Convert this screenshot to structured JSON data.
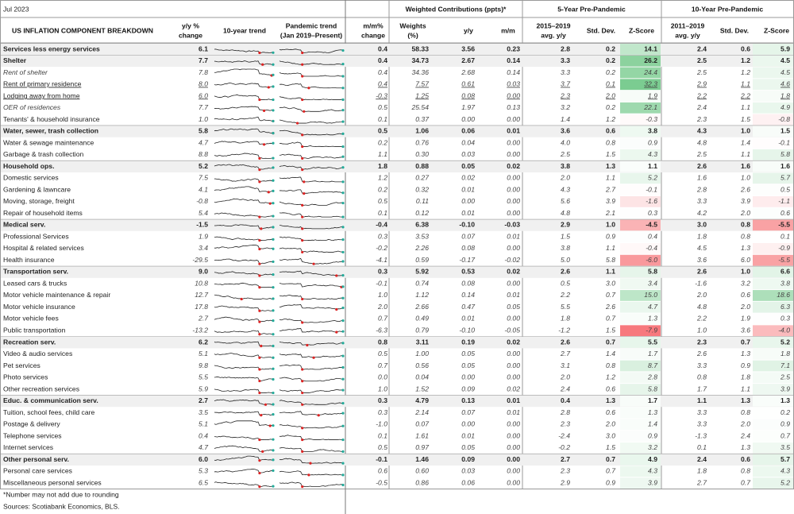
{
  "header": {
    "date": "Jul 2023",
    "title": "US INFLATION COMPONENT BREAKDOWN",
    "groups": [
      "Weighted Contributions (ppts)*",
      "5-Year Pre-Pandemic",
      "10-Year Pre-Pandemic"
    ],
    "columns": [
      [
        "y/y %",
        "change"
      ],
      [
        "10-year trend"
      ],
      [
        "Pandemic trend",
        "(Jan 2019–Present)"
      ],
      [
        "m/m%",
        "change"
      ],
      [
        "Weights",
        "(%)"
      ],
      [
        "y/y"
      ],
      [
        "m/m"
      ],
      [
        "2015–2019",
        "avg. y/y"
      ],
      [
        "Std. Dev."
      ],
      [
        "Z-Score"
      ],
      [
        "2011–2019",
        "avg. y/y"
      ],
      [
        "Std. Dev."
      ],
      [
        "Z-Score"
      ]
    ]
  },
  "table": {
    "rows": [
      {
        "style": "bold",
        "cells": [
          "Services less energy services",
          "6.1",
          "0.4",
          "58.33",
          "3.56",
          "0.23",
          "2.8",
          "0.2",
          "14.1",
          "2.4",
          "0.6",
          "5.9"
        ]
      },
      {
        "style": "bold",
        "cells": [
          "Shelter",
          "7.7",
          "0.4",
          "34.73",
          "2.67",
          "0.14",
          "3.3",
          "0.2",
          "26.2",
          "2.5",
          "1.2",
          "4.5"
        ]
      },
      {
        "style": "italic",
        "cells": [
          "Rent of shelter",
          "7.8",
          "0.4",
          "34.36",
          "2.68",
          "0.14",
          "3.3",
          "0.2",
          "24.4",
          "2.5",
          "1.2",
          "4.5"
        ]
      },
      {
        "style": "underline",
        "cells": [
          "Rent of primary residence",
          "8.0",
          "0.4",
          "7.57",
          "0.61",
          "0.03",
          "3.7",
          "0.1",
          "32.3",
          "2.9",
          "1.1",
          "4.6"
        ]
      },
      {
        "style": "underline",
        "cells": [
          "Lodging away from home",
          "6.0",
          "-0.3",
          "1.25",
          "0.08",
          "0.00",
          "2.3",
          "2.0",
          "1.9",
          "2.2",
          "2.2",
          "1.8"
        ]
      },
      {
        "style": "italic",
        "cells": [
          "OER of residences",
          "7.7",
          "0.5",
          "25.54",
          "1.97",
          "0.13",
          "3.2",
          "0.2",
          "22.1",
          "2.4",
          "1.1",
          "4.9"
        ]
      },
      {
        "style": "plain",
        "cells": [
          "Tenants' & household insurance",
          "1.0",
          "0.1",
          "0.37",
          "0.00",
          "0.00",
          "1.4",
          "1.2",
          "-0.3",
          "2.3",
          "1.5",
          "-0.8"
        ]
      },
      {
        "style": "bold",
        "cells": [
          "Water, sewer, trash collection",
          "5.8",
          "0.5",
          "1.06",
          "0.06",
          "0.01",
          "3.6",
          "0.6",
          "3.8",
          "4.3",
          "1.0",
          "1.5"
        ]
      },
      {
        "style": "plain",
        "cells": [
          "Water & sewage maintenance",
          "4.7",
          "0.2",
          "0.76",
          "0.04",
          "0.00",
          "4.0",
          "0.8",
          "0.9",
          "4.8",
          "1.4",
          "-0.1"
        ]
      },
      {
        "style": "plain",
        "cells": [
          "Garbage & trash collection",
          "8.8",
          "1.1",
          "0.30",
          "0.03",
          "0.00",
          "2.5",
          "1.5",
          "4.3",
          "2.5",
          "1.1",
          "5.8"
        ]
      },
      {
        "style": "bold",
        "cells": [
          "Household ops.",
          "5.2",
          "1.8",
          "0.88",
          "0.05",
          "0.02",
          "3.8",
          "1.3",
          "1.1",
          "2.6",
          "1.6",
          "1.6"
        ]
      },
      {
        "style": "plain",
        "cells": [
          "Domestic services",
          "7.5",
          "1.2",
          "0.27",
          "0.02",
          "0.00",
          "2.0",
          "1.1",
          "5.2",
          "1.6",
          "1.0",
          "5.7"
        ]
      },
      {
        "style": "plain",
        "cells": [
          "Gardening & lawncare",
          "4.1",
          "0.2",
          "0.32",
          "0.01",
          "0.00",
          "4.3",
          "2.7",
          "-0.1",
          "2.8",
          "2.6",
          "0.5"
        ]
      },
      {
        "style": "plain",
        "cells": [
          "Moving, storage, freight",
          "-0.8",
          "0.5",
          "0.11",
          "0.00",
          "0.00",
          "5.6",
          "3.9",
          "-1.6",
          "3.3",
          "3.9",
          "-1.1"
        ]
      },
      {
        "style": "plain",
        "cells": [
          "Repair of household items",
          "5.4",
          "0.1",
          "0.12",
          "0.01",
          "0.00",
          "4.8",
          "2.1",
          "0.3",
          "4.2",
          "2.0",
          "0.6"
        ]
      },
      {
        "style": "bold",
        "cells": [
          "Medical serv.",
          "-1.5",
          "-0.4",
          "6.38",
          "-0.10",
          "-0.03",
          "2.9",
          "1.0",
          "-4.5",
          "3.0",
          "0.8",
          "-5.5"
        ]
      },
      {
        "style": "plain",
        "cells": [
          "Professional Services",
          "1.9",
          "0.3",
          "3.53",
          "0.07",
          "0.01",
          "1.5",
          "0.9",
          "0.4",
          "1.8",
          "0.8",
          "0.1"
        ]
      },
      {
        "style": "plain",
        "cells": [
          "Hospital & related services",
          "3.4",
          "-0.2",
          "2.26",
          "0.08",
          "0.00",
          "3.8",
          "1.1",
          "-0.4",
          "4.5",
          "1.3",
          "-0.9"
        ]
      },
      {
        "style": "plain",
        "cells": [
          "Health insurance",
          "-29.5",
          "-4.1",
          "0.59",
          "-0.17",
          "-0.02",
          "5.0",
          "5.8",
          "-6.0",
          "3.6",
          "6.0",
          "-5.5"
        ]
      },
      {
        "style": "bold",
        "cells": [
          "Transportation serv.",
          "9.0",
          "0.3",
          "5.92",
          "0.53",
          "0.02",
          "2.6",
          "1.1",
          "5.8",
          "2.6",
          "1.0",
          "6.6"
        ]
      },
      {
        "style": "plain",
        "cells": [
          "Leased cars & trucks",
          "10.8",
          "-0.1",
          "0.74",
          "0.08",
          "0.00",
          "0.5",
          "3.0",
          "3.4",
          "-1.6",
          "3.2",
          "3.8"
        ]
      },
      {
        "style": "plain",
        "cells": [
          "Motor vehicle maintenance & repair",
          "12.7",
          "1.0",
          "1.12",
          "0.14",
          "0.01",
          "2.2",
          "0.7",
          "15.0",
          "2.0",
          "0.6",
          "18.6"
        ]
      },
      {
        "style": "plain",
        "cells": [
          "Motor vehicle insurance",
          "17.8",
          "2.0",
          "2.66",
          "0.47",
          "0.05",
          "5.5",
          "2.6",
          "4.7",
          "4.8",
          "2.0",
          "6.3"
        ]
      },
      {
        "style": "plain",
        "cells": [
          "Motor vehicle fees",
          "2.7",
          "0.7",
          "0.49",
          "0.01",
          "0.00",
          "1.8",
          "0.7",
          "1.3",
          "2.2",
          "1.9",
          "0.3"
        ]
      },
      {
        "style": "plain",
        "cells": [
          "Public transportation",
          "-13.2",
          "-6.3",
          "0.79",
          "-0.10",
          "-0.05",
          "-1.2",
          "1.5",
          "-7.9",
          "1.0",
          "3.6",
          "-4.0"
        ]
      },
      {
        "style": "bold",
        "cells": [
          "Recreation serv.",
          "6.2",
          "0.8",
          "3.11",
          "0.19",
          "0.02",
          "2.6",
          "0.7",
          "5.5",
          "2.3",
          "0.7",
          "5.2"
        ]
      },
      {
        "style": "plain",
        "cells": [
          "Video & audio services",
          "5.1",
          "0.5",
          "1.00",
          "0.05",
          "0.00",
          "2.7",
          "1.4",
          "1.7",
          "2.6",
          "1.3",
          "1.8"
        ]
      },
      {
        "style": "plain",
        "cells": [
          "Pet services",
          "9.8",
          "0.7",
          "0.56",
          "0.05",
          "0.00",
          "3.1",
          "0.8",
          "8.7",
          "3.3",
          "0.9",
          "7.1"
        ]
      },
      {
        "style": "plain",
        "cells": [
          "Photo services",
          "5.5",
          "0.0",
          "0.04",
          "0.00",
          "0.00",
          "2.0",
          "1.2",
          "2.8",
          "0.8",
          "1.8",
          "2.5"
        ]
      },
      {
        "style": "plain",
        "cells": [
          "Other recreation services",
          "5.9",
          "1.0",
          "1.52",
          "0.09",
          "0.02",
          "2.4",
          "0.6",
          "5.8",
          "1.7",
          "1.1",
          "3.9"
        ]
      },
      {
        "style": "bold",
        "cells": [
          "Educ. & communication serv.",
          "2.7",
          "0.3",
          "4.79",
          "0.13",
          "0.01",
          "0.4",
          "1.3",
          "1.7",
          "1.1",
          "1.3",
          "1.3"
        ]
      },
      {
        "style": "plain",
        "cells": [
          "Tuition, school fees, child care",
          "3.5",
          "0.3",
          "2.14",
          "0.07",
          "0.01",
          "2.8",
          "0.6",
          "1.3",
          "3.3",
          "0.8",
          "0.2"
        ]
      },
      {
        "style": "plain",
        "cells": [
          "Postage & delivery",
          "5.1",
          "-1.0",
          "0.07",
          "0.00",
          "0.00",
          "2.3",
          "2.0",
          "1.4",
          "3.3",
          "2.0",
          "0.9"
        ]
      },
      {
        "style": "plain",
        "cells": [
          "Telephone services",
          "0.4",
          "0.1",
          "1.61",
          "0.01",
          "0.00",
          "-2.4",
          "3.0",
          "0.9",
          "-1.3",
          "2.4",
          "0.7"
        ]
      },
      {
        "style": "plain",
        "cells": [
          "Internet services",
          "4.7",
          "0.5",
          "0.97",
          "0.05",
          "0.00",
          "-0.2",
          "1.5",
          "3.2",
          "0.1",
          "1.3",
          "3.5"
        ]
      },
      {
        "style": "bold",
        "cells": [
          "Other personal serv.",
          "6.0",
          "-0.1",
          "1.46",
          "0.09",
          "0.00",
          "2.7",
          "0.7",
          "4.9",
          "2.4",
          "0.6",
          "5.7"
        ]
      },
      {
        "style": "plain",
        "cells": [
          "Personal care services",
          "5.3",
          "0.6",
          "0.60",
          "0.03",
          "0.00",
          "2.3",
          "0.7",
          "4.3",
          "1.8",
          "0.8",
          "4.3"
        ]
      },
      {
        "style": "plain",
        "cells": [
          "Miscellaneous personal services",
          "6.5",
          "-0.5",
          "0.86",
          "0.06",
          "0.00",
          "2.9",
          "0.9",
          "3.9",
          "2.7",
          "0.7",
          "5.2"
        ]
      }
    ]
  },
  "footnotes": [
    "*Number may not add due to rounding",
    "Sources: Scotiabank Economics, BLS."
  ]
}
